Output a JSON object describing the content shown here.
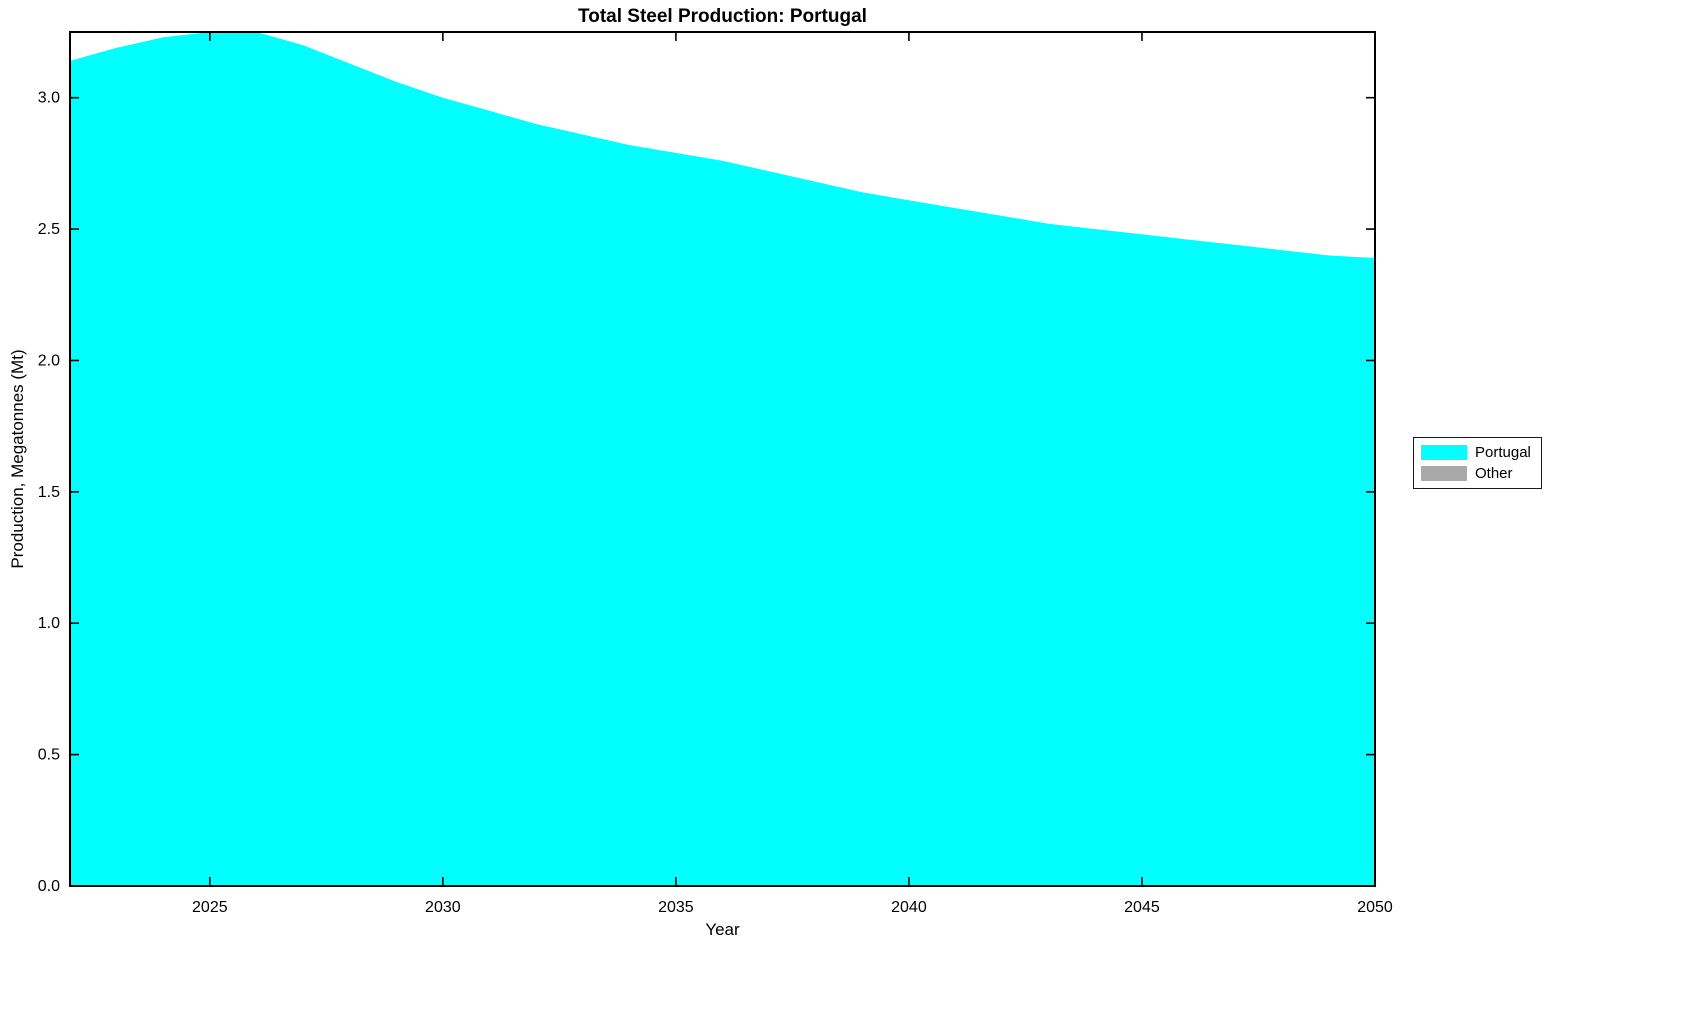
{
  "chart_data": {
    "type": "area",
    "title": "Total Steel Production: Portugal",
    "xlabel": "Year",
    "ylabel": "Production, Megatonnes (Mt)",
    "xlim": [
      2022,
      2050
    ],
    "ylim": [
      0.0,
      3.25
    ],
    "xticks": [
      2025,
      2030,
      2035,
      2040,
      2045,
      2050
    ],
    "yticks": [
      0.0,
      0.5,
      1.0,
      1.5,
      2.0,
      2.5,
      3.0
    ],
    "ytick_labels": [
      "0.0",
      "0.5",
      "1.0",
      "1.5",
      "2.0",
      "2.5",
      "3.0"
    ],
    "grid": false,
    "legend_position": "right-outside",
    "series": [
      {
        "name": "Portugal",
        "color": "#00FFFF",
        "x": [
          2022,
          2023,
          2024,
          2025,
          2026,
          2027,
          2028,
          2029,
          2030,
          2031,
          2032,
          2033,
          2034,
          2035,
          2036,
          2037,
          2038,
          2039,
          2040,
          2041,
          2042,
          2043,
          2044,
          2045,
          2046,
          2047,
          2048,
          2049,
          2050
        ],
        "values": [
          3.14,
          3.19,
          3.23,
          3.25,
          3.25,
          3.2,
          3.13,
          3.06,
          3.0,
          2.95,
          2.9,
          2.86,
          2.82,
          2.79,
          2.76,
          2.72,
          2.68,
          2.64,
          2.61,
          2.58,
          2.55,
          2.52,
          2.5,
          2.48,
          2.46,
          2.44,
          2.42,
          2.4,
          2.39
        ]
      },
      {
        "name": "Other",
        "color": "#A9A9A9",
        "x": [],
        "values": []
      }
    ]
  }
}
